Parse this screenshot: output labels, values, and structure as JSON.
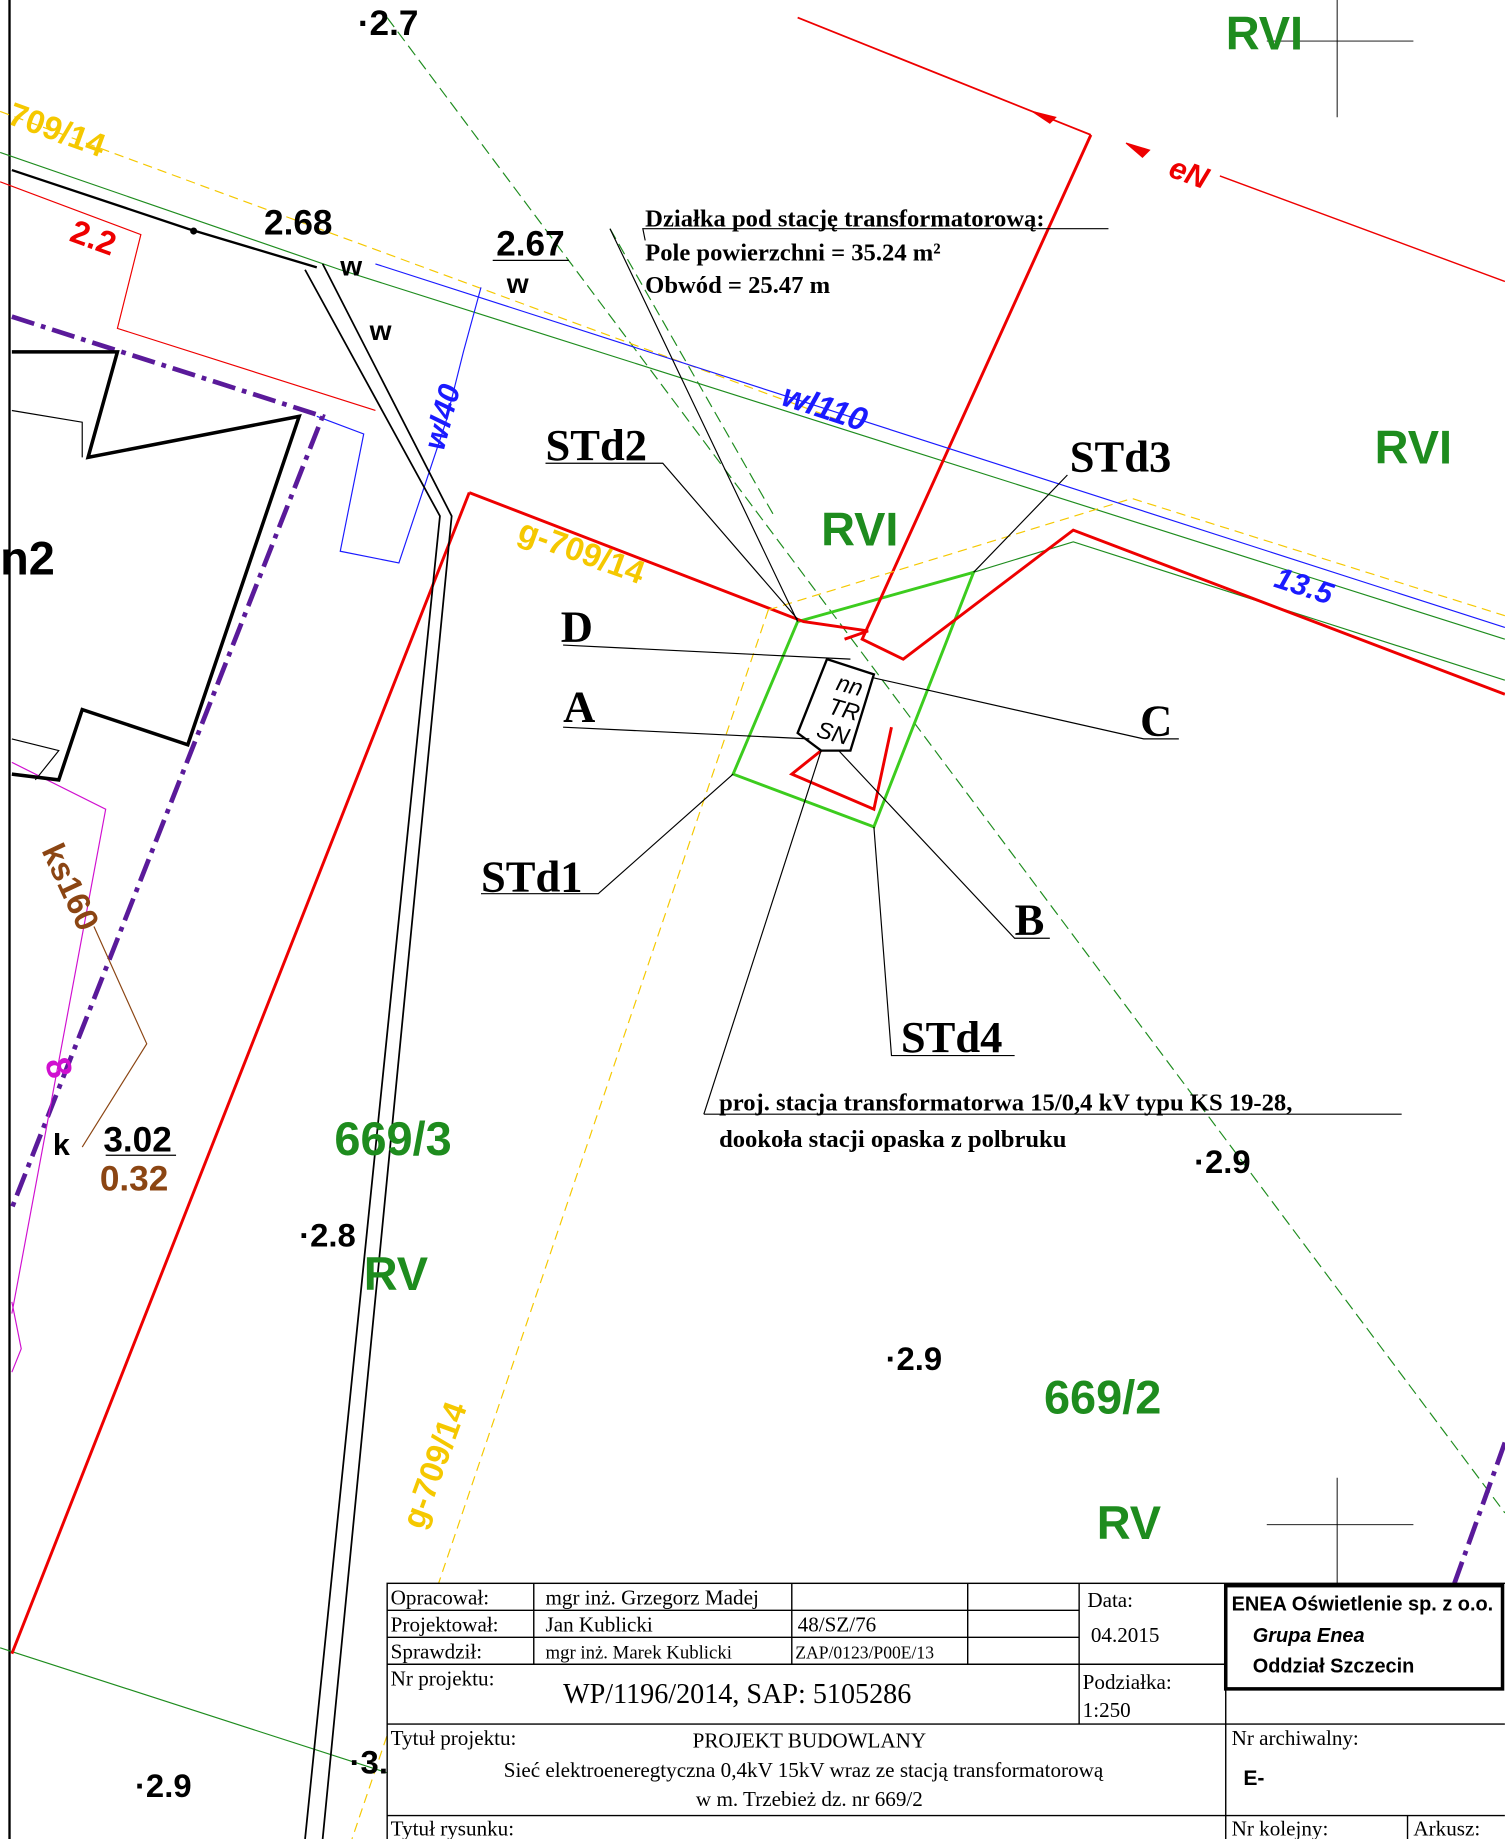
{
  "map": {
    "spot_top": "·2.7",
    "rvi_top": "RVI",
    "rvi_right": "RVI",
    "rvi_center": "RVI",
    "rv_left": "RV",
    "rv_bottom": "RV",
    "en": "eN",
    "parcel_top": "709/14",
    "parcel_mid": "g-709/14",
    "parcel_low": "g-709/14",
    "h_22": "2.2",
    "h_268": "2.68",
    "h_267": "2.67",
    "w1": "w",
    "w2": "w",
    "w3": "w",
    "wl40": "wl40",
    "wl110": "wl110",
    "d135": "13.5",
    "n2": "n2",
    "ks160": "ks160",
    "k": "k",
    "h_302": "3.02",
    "h_032": "0.32",
    "eight": "8",
    "std1": "STd1",
    "std2": "STd2",
    "std3": "STd3",
    "std4": "STd4",
    "a": "A",
    "b": "B",
    "c": "C",
    "d": "D",
    "nn": "nn",
    "tr": "TR",
    "sn": "SN",
    "callout": [
      "Działka pod stację transformatorową:",
      "Pole powierzchni = 35.24 m²",
      "Obwód = 25.47 m"
    ],
    "note": [
      "proj. stacja transformatorwa 15/0,4 kV typu KS 19-28,",
      "dookoła stacji opaska z polbruku"
    ],
    "parcel_6693": "669/3",
    "parcel_6692": "669/2",
    "spot_28": "·2.8",
    "spot_29a": "·2.9",
    "spot_29b": "·2.9",
    "spot_29c": "·2.9",
    "spot_3": "·3."
  },
  "title_block": {
    "opracowal_label": "Opracował:",
    "opracowal": "mgr inż. Grzegorz Madej",
    "projektowal_label": "Projektował:",
    "projektowal": "Jan Kublicki",
    "projektowal_no": "48/SZ/76",
    "sprawdzil_label": "Sprawdził:",
    "sprawdzil": "mgr inż. Marek Kublicki",
    "sprawdzil_no": "ZAP/0123/P00E/13",
    "data_label": "Data:",
    "data": "04.2015",
    "nr_projektu_label": "Nr projektu:",
    "nr_projektu": "WP/1196/2014, SAP: 5105286",
    "podzialka_label": "Podziałka:",
    "podzialka": "1:250",
    "company": "ENEA Oświetlenie sp. z o.o.",
    "group": "Grupa Enea",
    "branch": "Oddział Szczecin",
    "tytul_projektu_label": "Tytuł projektu:",
    "tytul_projektu": [
      "PROJEKT BUDOWLANY",
      "Sieć  elektroeneregtyczna 0,4kV 15kV wraz ze stacją transformatorową",
      "w m. Trzebież dz. nr 669/2"
    ],
    "nr_archiwalny_label": "Nr archiwalny:",
    "nr_archiwalny": "E-",
    "tytul_rysunku_label": "Tytuł rysunku:",
    "nr_kolejny_label": "Nr kolejny:",
    "arkusz_label": "Arkusz:"
  }
}
